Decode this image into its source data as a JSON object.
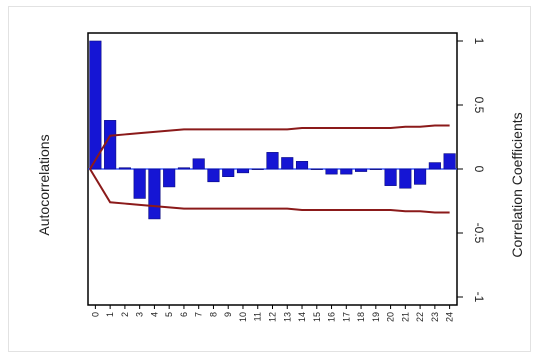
{
  "chart_data": {
    "type": "bar",
    "ylabel": "Autocorrelations",
    "y2label": "Correlation Coefficients",
    "ylim": [
      -1,
      1
    ],
    "yticks": [
      "-1",
      "-0.5",
      "0",
      "0.5",
      "1"
    ],
    "categories": [
      "0",
      "1",
      "2",
      "3",
      "4",
      "5",
      "6",
      "7",
      "8",
      "9",
      "10",
      "11",
      "12",
      "13",
      "14",
      "15",
      "16",
      "17",
      "18",
      "19",
      "20",
      "21",
      "22",
      "23",
      "24"
    ],
    "series": [
      {
        "values": [
          1.0,
          0.38,
          0.01,
          -0.23,
          -0.39,
          -0.14,
          0.01,
          0.08,
          -0.1,
          -0.06,
          -0.03,
          0.0,
          0.13,
          0.09,
          0.06,
          0.0,
          -0.04,
          -0.04,
          -0.02,
          0.0,
          -0.13,
          -0.15,
          -0.12,
          0.05,
          0.12
        ],
        "color": "#1515d4"
      }
    ],
    "confidence_bands": {
      "color": "#8b1a1a",
      "upper": [
        0.0,
        0.26,
        0.27,
        0.28,
        0.29,
        0.3,
        0.31,
        0.31,
        0.31,
        0.31,
        0.31,
        0.31,
        0.31,
        0.31,
        0.32,
        0.32,
        0.32,
        0.32,
        0.32,
        0.32,
        0.32,
        0.33,
        0.33,
        0.34,
        0.34
      ],
      "lower": [
        0.0,
        -0.26,
        -0.27,
        -0.28,
        -0.29,
        -0.3,
        -0.31,
        -0.31,
        -0.31,
        -0.31,
        -0.31,
        -0.31,
        -0.31,
        -0.31,
        -0.32,
        -0.32,
        -0.32,
        -0.32,
        -0.32,
        -0.32,
        -0.32,
        -0.33,
        -0.33,
        -0.34,
        -0.34
      ]
    },
    "zero_line_color": "#1f3fff",
    "grid": false
  }
}
